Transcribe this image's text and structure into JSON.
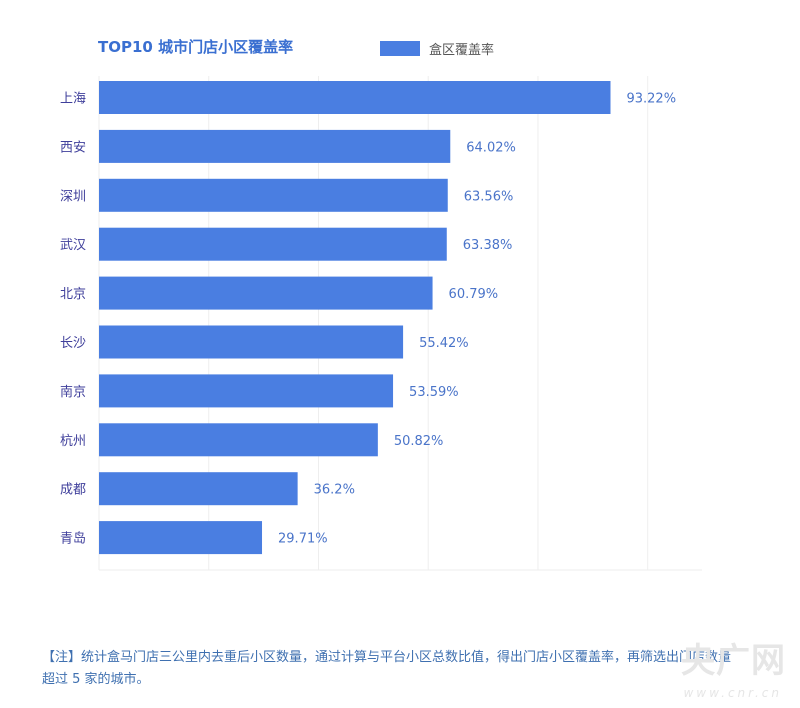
{
  "chart_data": {
    "type": "bar",
    "orientation": "horizontal",
    "title": "TOP10 城市门店小区覆盖率",
    "legend": {
      "label": "盒区覆盖率",
      "placement": "top-right"
    },
    "categories": [
      "上海",
      "西安",
      "深圳",
      "武汉",
      "北京",
      "长沙",
      "南京",
      "杭州",
      "成都",
      "青岛"
    ],
    "series": [
      {
        "name": "盒区覆盖率",
        "values": [
          93.22,
          64.02,
          63.56,
          63.38,
          60.79,
          55.42,
          53.59,
          50.82,
          36.2,
          29.71
        ]
      }
    ],
    "value_labels": [
      "93.22%",
      "64.02%",
      "63.56%",
      "63.38%",
      "60.79%",
      "55.42%",
      "53.59%",
      "50.82%",
      "36.2%",
      "29.71%"
    ],
    "xlim": [
      0,
      110
    ],
    "grid": true,
    "color": "#4a7ee1"
  },
  "note": "【注】统计盒马门店三公里内去重后小区数量，通过计算与平台小区总数比值，得出门店小区覆盖率，再筛选出门店数量超过 5 家的城市。",
  "watermark": {
    "text": "央广网",
    "sub": "www.cnr.cn"
  }
}
